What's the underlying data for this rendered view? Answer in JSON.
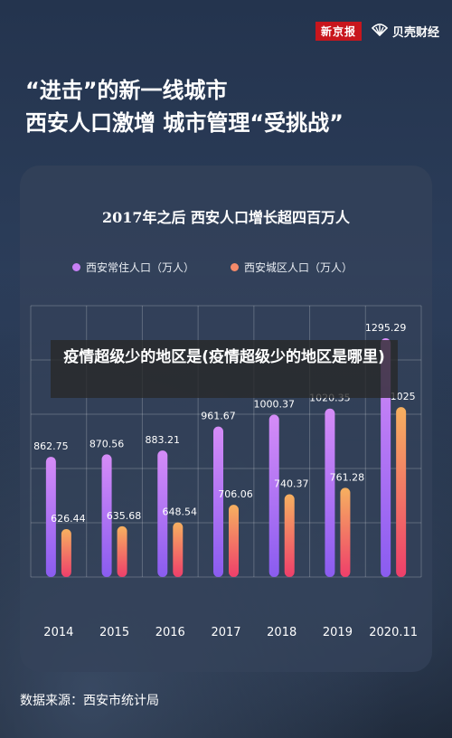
{
  "branding": {
    "newspaper": "新京报",
    "finance": "贝壳财经"
  },
  "headline": {
    "line1": "“进击”的新一线城市",
    "line2": "西安人口激增 城市管理“受挑战”"
  },
  "overlay": {
    "text": "疫情超级少的地区是(疫情超级少的地区是哪里)"
  },
  "source": "数据来源：西安市统计局",
  "colors": {
    "series1": "#c780f5",
    "series2": "#f58a6a"
  },
  "chart_data": {
    "type": "bar",
    "title": "2017年之后 西安人口增长超四百万人",
    "legend": [
      "西安常住人口（万人）",
      "西安城区人口（万人）"
    ],
    "categories": [
      "2014",
      "2015",
      "2016",
      "2017",
      "2018",
      "2019",
      "2020.11"
    ],
    "series": [
      {
        "name": "西安常住人口（万人）",
        "values": [
          862.75,
          870.56,
          883.21,
          961.67,
          1000.37,
          1020.35,
          1295.29
        ],
        "labels": [
          "862.75",
          "870.56",
          "883.21",
          "961.67",
          "1000.37",
          "1020.35",
          "1295.29"
        ]
      },
      {
        "name": "西安城区人口（万人）",
        "values": [
          626.44,
          635.68,
          648.54,
          706.06,
          740.37,
          761.28,
          1025
        ],
        "labels": [
          "626.44",
          "635.68",
          "648.54",
          "706.06",
          "740.37",
          "761.28",
          "1025"
        ]
      }
    ],
    "legend_position": "top",
    "grid": true
  }
}
